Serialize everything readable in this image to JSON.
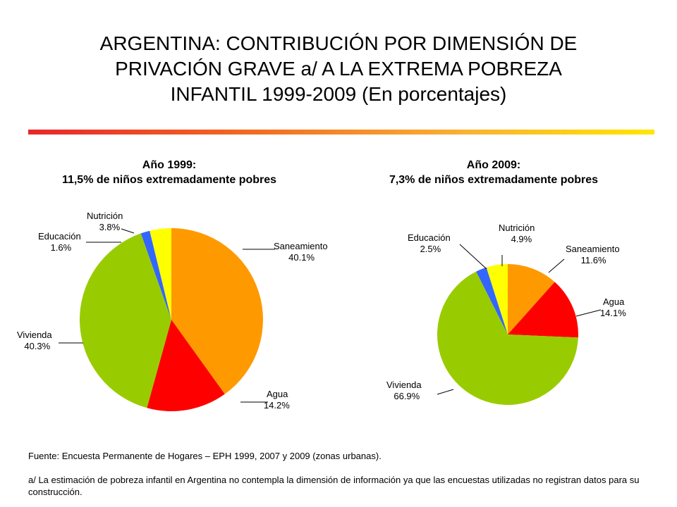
{
  "title": {
    "line1": "ARGENTINA: CONTRIBUCIÓN POR DIMENSIÓN DE",
    "line2": "PRIVACIÓN GRAVE a/ A LA EXTREMA POBREZA",
    "line3": "INFANTIL 1999-2009 (En porcentajes)"
  },
  "colors": {
    "Saneamiento": "#ff9900",
    "Agua": "#ff0000",
    "Vivienda": "#99cc00",
    "Educación": "#3366ff",
    "Nutrición": "#ffff00"
  },
  "chart_data": [
    {
      "type": "pie",
      "title_line1": "Año 1999:",
      "title_line2": "11,5% de niños extremadamente pobres",
      "slices": [
        {
          "label": "Saneamiento",
          "value": 40.1,
          "value_label": "40.1%"
        },
        {
          "label": "Agua",
          "value": 14.2,
          "value_label": "14.2%"
        },
        {
          "label": "Vivienda",
          "value": 40.3,
          "value_label": "40.3%"
        },
        {
          "label": "Educación",
          "value": 1.6,
          "value_label": "1.6%"
        },
        {
          "label": "Nutrición",
          "value": 3.8,
          "value_label": "3.8%"
        }
      ]
    },
    {
      "type": "pie",
      "title_line1": "Año 2009:",
      "title_line2": "7,3% de niños extremadamente pobres",
      "slices": [
        {
          "label": "Saneamiento",
          "value": 11.6,
          "value_label": "11.6%"
        },
        {
          "label": "Agua",
          "value": 14.1,
          "value_label": "14.1%"
        },
        {
          "label": "Vivienda",
          "value": 66.9,
          "value_label": "66.9%"
        },
        {
          "label": "Educación",
          "value": 2.5,
          "value_label": "2.5%"
        },
        {
          "label": "Nutrición",
          "value": 4.9,
          "value_label": "4.9%"
        }
      ]
    }
  ],
  "footer": {
    "source": "Fuente: Encuesta Permanente de Hogares – EPH 1999, 2007 y 2009 (zonas urbanas).",
    "note": "a/ La estimación de pobreza infantil en Argentina no contempla la dimensión de información ya que las encuestas utilizadas no registran datos para su construcción."
  }
}
